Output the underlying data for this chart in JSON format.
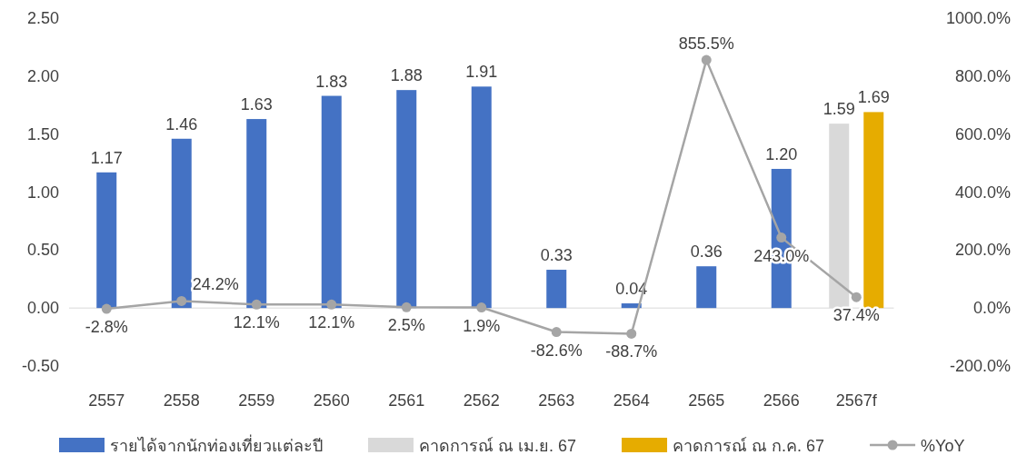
{
  "chart_data": {
    "type": "bar",
    "categories": [
      "2557",
      "2558",
      "2559",
      "2560",
      "2561",
      "2562",
      "2563",
      "2564",
      "2565",
      "2566",
      "2567f"
    ],
    "series": [
      {
        "name": "รายได้จากนักท่องเที่ยวแต่ละปี",
        "color": "#4472c4",
        "values": [
          1.17,
          1.46,
          1.63,
          1.83,
          1.88,
          1.91,
          0.33,
          0.04,
          0.36,
          1.2,
          null
        ],
        "value_labels": [
          "1.17",
          "1.46",
          "1.63",
          "1.83",
          "1.88",
          "1.91",
          "0.33",
          "0.04",
          "0.36",
          "1.20",
          null
        ]
      },
      {
        "name": "คาดการณ์ ณ เม.ย. 67",
        "color": "#d9d9d9",
        "values": [
          null,
          null,
          null,
          null,
          null,
          null,
          null,
          null,
          null,
          null,
          1.59
        ],
        "value_labels": [
          null,
          null,
          null,
          null,
          null,
          null,
          null,
          null,
          null,
          null,
          "1.59"
        ]
      },
      {
        "name": "คาดการณ์ ณ ก.ค. 67",
        "color": "#e6ac00",
        "values": [
          null,
          null,
          null,
          null,
          null,
          null,
          null,
          null,
          null,
          null,
          1.69
        ],
        "value_labels": [
          null,
          null,
          null,
          null,
          null,
          null,
          null,
          null,
          null,
          null,
          "1.69"
        ]
      },
      {
        "name": "%YoY",
        "type": "line",
        "axis": "y2",
        "color": "#a5a5a5",
        "values": [
          -2.8,
          24.2,
          12.1,
          12.1,
          2.5,
          1.9,
          -82.6,
          -88.7,
          855.5,
          243.0,
          37.4
        ],
        "value_labels": [
          "-2.8%",
          "24.2%",
          "12.1%",
          "12.1%",
          "2.5%",
          "1.9%",
          "-82.6%",
          "-88.7%",
          "855.5%",
          "243.0%",
          "37.4%"
        ]
      }
    ],
    "ylim": [
      -0.5,
      2.5
    ],
    "yticks": [
      {
        "value": -0.5,
        "label": "-0.50"
      },
      {
        "value": 0,
        "label": "0.00"
      },
      {
        "value": 0.5,
        "label": "0.50"
      },
      {
        "value": 1,
        "label": "1.00"
      },
      {
        "value": 1.5,
        "label": "1.50"
      },
      {
        "value": 2,
        "label": "2.00"
      },
      {
        "value": 2.5,
        "label": "2.50"
      }
    ],
    "y2lim": [
      -200,
      1000
    ],
    "y2ticks": [
      {
        "value": -200,
        "label": "-200.0%"
      },
      {
        "value": 0,
        "label": "0.0%"
      },
      {
        "value": 200,
        "label": "200.0%"
      },
      {
        "value": 400,
        "label": "400.0%"
      },
      {
        "value": 600,
        "label": "600.0%"
      },
      {
        "value": 800,
        "label": "800.0%"
      },
      {
        "value": 1000,
        "label": "1000.0%"
      }
    ],
    "marker": "circle",
    "legend": "bottom"
  }
}
